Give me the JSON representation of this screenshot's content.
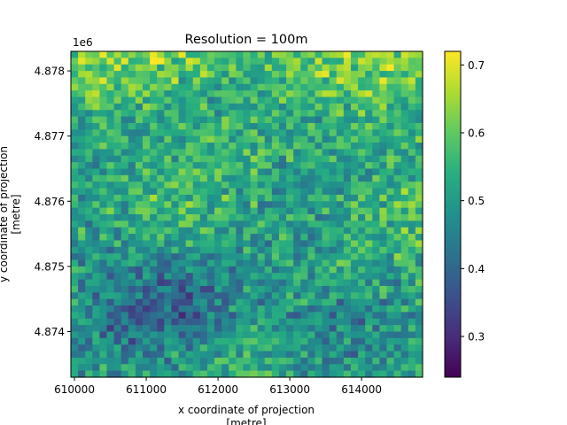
{
  "chart_data": {
    "type": "heatmap",
    "title": "Resolution = 100m",
    "xlabel_line1": "x coordinate of projection",
    "xlabel_line2": "[metre]",
    "ylabel_line1": "y coordinate of projection",
    "ylabel_line2": "[metre]",
    "y_offset_label": "1e6",
    "x_range": [
      609950,
      614850
    ],
    "y_range": [
      4873300,
      4878300
    ],
    "x_ticks": [
      610000,
      611000,
      612000,
      613000,
      614000
    ],
    "x_tick_labels": [
      "610000",
      "611000",
      "612000",
      "613000",
      "614000"
    ],
    "y_ticks": [
      4874000,
      4875000,
      4876000,
      4877000,
      4878000
    ],
    "y_tick_labels": [
      "4.874",
      "4.875",
      "4.876",
      "4.877",
      "4.878"
    ],
    "grid": false,
    "colormap": "viridis",
    "color_range": [
      0.24,
      0.72
    ],
    "colorbar_ticks": [
      0.3,
      0.4,
      0.5,
      0.6,
      0.7
    ],
    "colorbar_tick_labels": [
      "0.3",
      "0.4",
      "0.5",
      "0.6",
      "0.7"
    ],
    "grid_size": {
      "cols": 49,
      "rows": 50
    },
    "cell_size_m": 100,
    "value_field_description_zones": [
      {
        "region": "top band (y > 4877000)",
        "typical_value": 0.58
      },
      {
        "region": "central (4875500-4877000)",
        "typical_value": 0.52
      },
      {
        "region": "lower-left (x < 612500, y < 4875000)",
        "typical_value": 0.4
      },
      {
        "region": "lower-right",
        "typical_value": 0.46
      }
    ]
  },
  "colors": {
    "axis": "#000000",
    "background": "#ffffff"
  }
}
